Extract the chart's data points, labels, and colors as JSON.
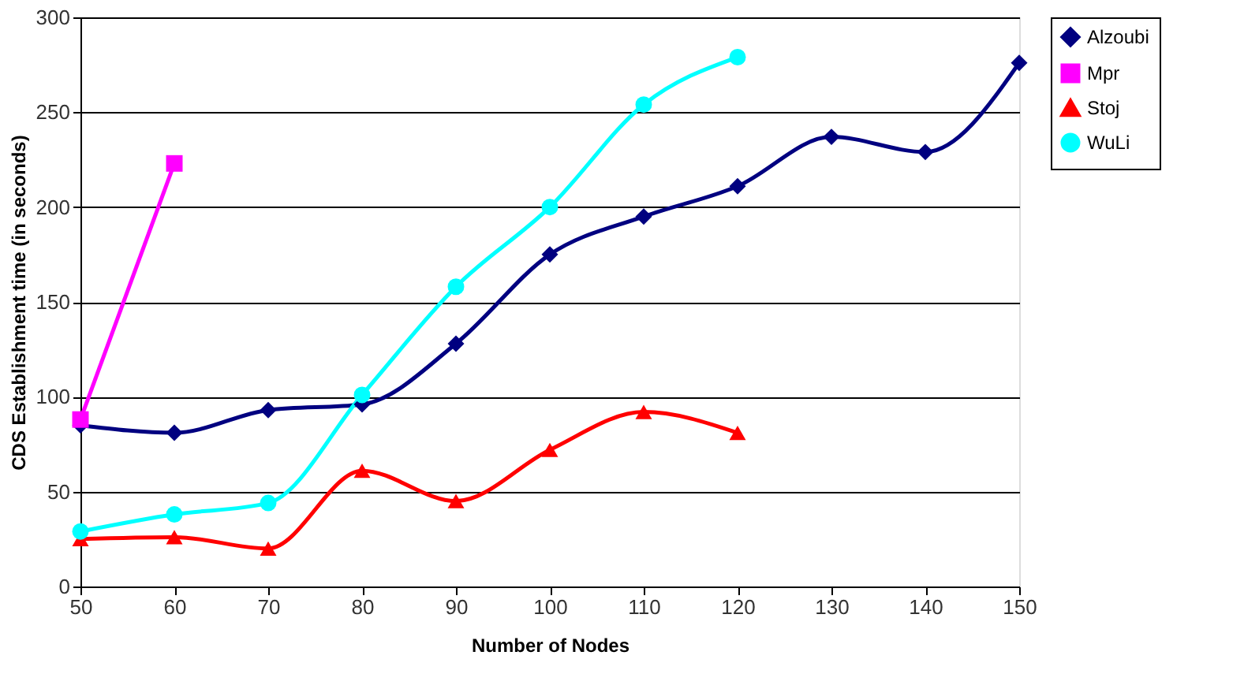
{
  "chart_data": {
    "type": "line",
    "xlabel": "Number of Nodes",
    "ylabel": "CDS Establishment time (in seconds)",
    "xlim": [
      50,
      150
    ],
    "xticks": [
      50,
      60,
      70,
      80,
      90,
      100,
      110,
      120,
      130,
      140,
      150
    ],
    "ylim": [
      0,
      300
    ],
    "yticks": [
      0,
      50,
      100,
      150,
      200,
      250,
      300
    ],
    "grid": "y",
    "legend": "right",
    "line_style": "solid",
    "series": [
      {
        "name": "Alzoubi",
        "color": "#000080",
        "marker": "diamond",
        "x": [
          50,
          60,
          70,
          80,
          90,
          100,
          110,
          120,
          130,
          140,
          150
        ],
        "values": [
          85,
          81,
          93,
          96,
          128,
          175,
          195,
          211,
          237,
          229,
          276
        ]
      },
      {
        "name": "Mpr",
        "color": "#ff00ff",
        "marker": "square",
        "x": [
          50,
          60
        ],
        "values": [
          88,
          223
        ]
      },
      {
        "name": "Stoj",
        "color": "#ff0000",
        "marker": "triangle",
        "x": [
          50,
          60,
          70,
          80,
          90,
          100,
          110,
          120
        ],
        "values": [
          25,
          26,
          20,
          61,
          45,
          72,
          92,
          81
        ]
      },
      {
        "name": "WuLi",
        "color": "#00ffff",
        "marker": "circle",
        "x": [
          50,
          60,
          70,
          80,
          90,
          100,
          110,
          120
        ],
        "values": [
          29,
          38,
          44,
          101,
          158,
          200,
          254,
          279
        ]
      }
    ]
  }
}
